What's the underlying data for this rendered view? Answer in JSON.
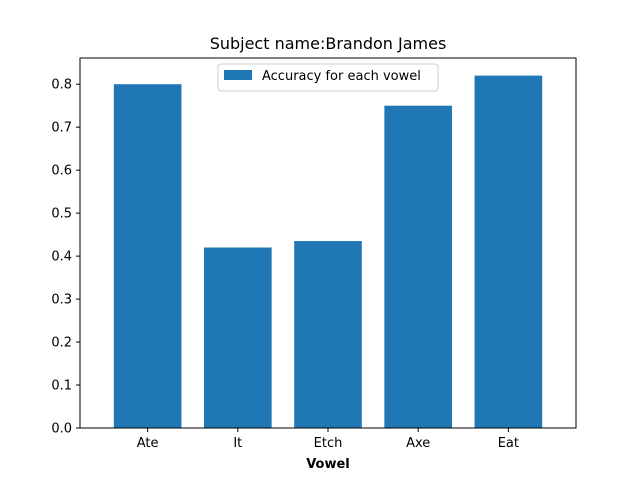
{
  "chart_data": {
    "type": "bar",
    "title": "Subject name:Brandon James",
    "xlabel": "Vowel",
    "ylabel": "",
    "categories": [
      "Ate",
      "It",
      "Etch",
      "Axe",
      "Eat"
    ],
    "series": [
      {
        "name": "Accuracy for each vowel",
        "values": [
          0.8,
          0.42,
          0.435,
          0.75,
          0.82
        ],
        "color": "#1f77b4"
      }
    ],
    "ylim": [
      0,
      0.861
    ],
    "yticks": [
      "0.0",
      "0.1",
      "0.2",
      "0.3",
      "0.4",
      "0.5",
      "0.6",
      "0.7",
      "0.8"
    ],
    "grid": false,
    "legend_position": "top-center"
  }
}
